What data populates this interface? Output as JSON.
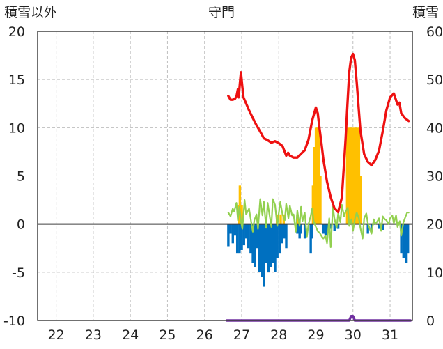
{
  "chart_data": {
    "type": "bar+line",
    "title": "守門",
    "y_left_label": "積雪以外",
    "y_right_label": "積雪",
    "y_left_ticks": [
      "20",
      "15",
      "10",
      "5",
      "0",
      "-5",
      "-10"
    ],
    "y_right_ticks": [
      "60",
      "50",
      "40",
      "30",
      "20",
      "10",
      "0"
    ],
    "x_tick_labels": [
      "22",
      "23",
      "24",
      "25",
      "26",
      "27",
      "28",
      "29",
      "30",
      "31"
    ],
    "x_domain": [
      21.5,
      31.6
    ],
    "y_left_range": [
      -10,
      20
    ],
    "y_right_range": [
      0,
      60
    ],
    "grid": true,
    "colors": {
      "snow_depth": "#ee1111",
      "temperature": "#92d050",
      "positive_bars": "#ffc000",
      "negative_bars": "#0070c0",
      "snowfall_line": "#7030a0",
      "grid": "#bfbfbf",
      "axis": "#404040"
    },
    "series": [
      {
        "key": "snow_depth",
        "axis": "right",
        "x": [
          26.64,
          26.7,
          26.76,
          26.82,
          26.86,
          26.9,
          26.92,
          26.95,
          26.98,
          27.02,
          27.05,
          27.1,
          27.2,
          27.3,
          27.4,
          27.5,
          27.6,
          27.7,
          27.8,
          27.9,
          28.0,
          28.1,
          28.2,
          28.25,
          28.3,
          28.4,
          28.5,
          28.6,
          28.7,
          28.8,
          28.9,
          29.0,
          29.05,
          29.1,
          29.15,
          29.2,
          29.3,
          29.4,
          29.5,
          29.6,
          29.7,
          29.8,
          29.85,
          29.9,
          29.95,
          30.0,
          30.05,
          30.1,
          30.2,
          30.3,
          30.4,
          30.5,
          30.6,
          30.7,
          30.8,
          30.9,
          31.0,
          31.1,
          31.2,
          31.25,
          31.3,
          31.4,
          31.5
        ],
        "y": [
          46.6,
          45.8,
          45.8,
          46.0,
          46.5,
          48.0,
          46.3,
          49.0,
          51.5,
          48.4,
          46.3,
          45.4,
          43.6,
          42.0,
          40.5,
          39.2,
          37.8,
          37.4,
          36.9,
          37.2,
          36.8,
          36.2,
          34.2,
          34.8,
          34.2,
          33.8,
          33.8,
          34.6,
          35.3,
          37.5,
          41.5,
          44.2,
          43.0,
          39.8,
          36.8,
          33.5,
          28.8,
          25.6,
          23.3,
          22.5,
          25.5,
          37.5,
          44.8,
          51.5,
          54.5,
          55.3,
          54.0,
          49.5,
          39.4,
          34.5,
          32.9,
          32.2,
          33.3,
          35.2,
          39.2,
          43.6,
          46.3,
          47.1,
          44.8,
          45.2,
          43.0,
          42.0,
          41.4
        ]
      },
      {
        "key": "temperature",
        "axis": "left",
        "x": [
          26.64,
          26.7,
          26.76,
          26.8,
          26.86,
          26.9,
          26.94,
          26.98,
          27.02,
          27.08,
          27.12,
          27.2,
          27.24,
          27.3,
          27.34,
          27.4,
          27.44,
          27.5,
          27.56,
          27.6,
          27.66,
          27.7,
          27.76,
          27.8,
          27.84,
          27.9,
          27.96,
          28.0,
          28.04,
          28.1,
          28.16,
          28.2,
          28.26,
          28.3,
          28.36,
          28.4,
          28.46,
          28.5,
          28.56,
          28.6,
          28.64,
          28.7,
          28.76,
          28.8,
          28.86,
          28.9,
          28.94,
          29.0,
          29.06,
          29.1,
          29.16,
          29.2,
          29.26,
          29.3,
          29.36,
          29.4,
          29.46,
          29.5,
          29.56,
          29.6,
          29.66,
          29.7,
          29.76,
          29.8,
          29.86,
          29.9,
          29.96,
          30.0,
          30.06,
          30.1,
          30.16,
          30.2,
          30.26,
          30.3,
          30.36,
          30.4,
          30.46,
          30.5,
          30.56,
          30.6,
          30.66,
          30.7,
          30.76,
          30.8,
          30.86,
          30.9,
          30.96,
          31.0,
          31.06,
          31.1,
          31.16,
          31.2,
          31.26,
          31.3,
          31.36,
          31.4,
          31.46,
          31.5
        ],
        "y": [
          1.2,
          0.8,
          1.6,
          1.3,
          2.2,
          0.4,
          1.8,
          0.3,
          -0.5,
          2.5,
          1.0,
          1.6,
          0.6,
          -0.8,
          0.4,
          1.0,
          -0.5,
          2.6,
          0.9,
          2.3,
          -0.4,
          2.2,
          0.7,
          -0.3,
          2.6,
          2.0,
          -0.2,
          1.1,
          2.3,
          1.0,
          0.4,
          2.1,
          0.6,
          1.9,
          0.9,
          1.0,
          -0.8,
          1.4,
          -0.2,
          1.8,
          0.3,
          1.2,
          -1.3,
          0.0,
          0.8,
          1.6,
          0.3,
          -0.3,
          -0.8,
          -0.9,
          -1.3,
          -1.5,
          -1.2,
          -2.0,
          0.6,
          -2.4,
          1.8,
          0.6,
          -0.4,
          1.1,
          0.2,
          2.0,
          0.8,
          1.3,
          1.7,
          -0.2,
          0.5,
          -0.7,
          0.7,
          1.2,
          0.6,
          -0.4,
          -1.5,
          0.6,
          1.1,
          0.1,
          -0.6,
          -1.0,
          0.5,
          0.0,
          0.3,
          0.6,
          -0.7,
          0.8,
          0.5,
          0.4,
          0.0,
          0.6,
          0.9,
          0.1,
          0.9,
          -0.3,
          0.3,
          -1.2,
          0.2,
          0.6,
          1.2,
          1.2
        ]
      },
      {
        "key": "positive_bars",
        "axis": "left",
        "x": [
          26.92,
          26.95,
          27.0,
          27.95,
          28.05,
          28.13,
          28.5,
          28.92,
          28.96,
          29.0,
          29.04,
          29.08,
          29.12,
          29.84,
          29.88,
          29.92,
          29.96,
          30.0,
          30.04,
          30.08,
          30.12,
          30.16,
          30.2
        ],
        "y": [
          2.0,
          4.0,
          2.0,
          1.0,
          1.0,
          1.0,
          1.0,
          4.0,
          8.0,
          10.0,
          10.0,
          10.0,
          5.0,
          10.0,
          10.0,
          10.0,
          10.0,
          10.0,
          10.0,
          10.0,
          10.0,
          10.0,
          5.0
        ]
      },
      {
        "key": "negative_bars",
        "axis": "left",
        "x": [
          26.64,
          26.7,
          26.76,
          26.82,
          26.88,
          26.94,
          27.0,
          27.06,
          27.12,
          27.18,
          27.24,
          27.3,
          27.36,
          27.42,
          27.48,
          27.54,
          27.6,
          27.66,
          27.72,
          27.78,
          27.84,
          27.9,
          27.96,
          28.02,
          28.08,
          28.14,
          28.2,
          28.5,
          28.56,
          28.6,
          28.7,
          28.86,
          28.9,
          29.2,
          29.26,
          29.3,
          29.4,
          29.5,
          29.6,
          30.4,
          30.5,
          30.7,
          30.8,
          31.3,
          31.36,
          31.4,
          31.44,
          31.48
        ],
        "y": [
          -2.3,
          -1.0,
          -2.0,
          -1.2,
          -3.0,
          -3.0,
          -2.7,
          -2.2,
          -1.5,
          -2.5,
          -3.0,
          -4.0,
          -4.5,
          -2.5,
          -5.0,
          -5.5,
          -6.5,
          -4.0,
          -5.0,
          -4.5,
          -4.0,
          -5.0,
          -3.5,
          -3.0,
          -2.0,
          -1.5,
          -2.5,
          -1.0,
          -1.5,
          -1.0,
          -1.5,
          -3.0,
          -1.5,
          -1.0,
          -1.2,
          -0.8,
          -0.5,
          -0.7,
          -0.5,
          -1.0,
          -0.8,
          -0.5,
          -0.6,
          -3.0,
          -3.5,
          -3.0,
          -4.0,
          -3.0
        ]
      },
      {
        "key": "snowfall_line",
        "axis": "left",
        "x": [
          26.6,
          29.9,
          29.95,
          30.0,
          30.05,
          31.55
        ],
        "y": [
          -10.0,
          -10.0,
          -9.55,
          -9.55,
          -10.0,
          -10.0
        ]
      }
    ]
  }
}
